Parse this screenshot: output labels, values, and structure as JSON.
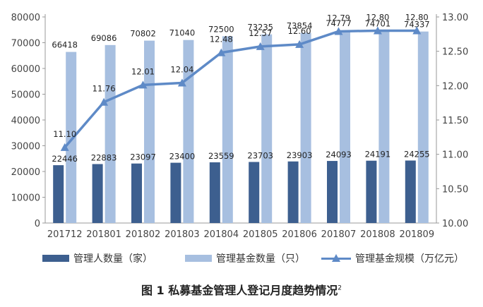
{
  "chart_data": {
    "type": "bar",
    "categories": [
      "201712",
      "201801",
      "201802",
      "201803",
      "201804",
      "201805",
      "201806",
      "201807",
      "201808",
      "201809"
    ],
    "series": [
      {
        "name": "管理人数量（家）",
        "type": "bar",
        "axis": "left",
        "color": "#3d5f8f",
        "values": [
          22446,
          22883,
          23097,
          23400,
          23559,
          23703,
          23903,
          24093,
          24191,
          24255
        ]
      },
      {
        "name": "管理基金数量（只）",
        "type": "bar",
        "axis": "left",
        "color": "#a7bfe0",
        "values": [
          66418,
          69086,
          70802,
          71040,
          72500,
          73235,
          73854,
          74777,
          74701,
          74337
        ]
      },
      {
        "name": "管理基金规模（万亿元）",
        "type": "line",
        "axis": "right",
        "color": "#5e8ac7",
        "marker": "triangle",
        "values": [
          11.1,
          11.76,
          12.01,
          12.04,
          12.48,
          12.57,
          12.6,
          12.79,
          12.8,
          12.8
        ]
      }
    ],
    "y_left": {
      "range": [
        0,
        80000
      ],
      "ticks": [
        "0",
        "10000",
        "20000",
        "30000",
        "40000",
        "50000",
        "60000",
        "70000",
        "80000"
      ]
    },
    "y_right": {
      "range": [
        10.0,
        13.0
      ],
      "ticks": [
        "10.00",
        "10.50",
        "11.00",
        "11.50",
        "12.00",
        "12.50",
        "13.00"
      ]
    },
    "line_labels": [
      "11.10",
      "11.76",
      "12.01",
      "12.04",
      "12.48",
      "12.57",
      "12.60",
      "12.79",
      "12.80",
      "12.80"
    ],
    "grid": false,
    "legend_position": "bottom",
    "caption": "图 1  私募基金管理人登记月度趋势情况",
    "caption_note": "2"
  }
}
